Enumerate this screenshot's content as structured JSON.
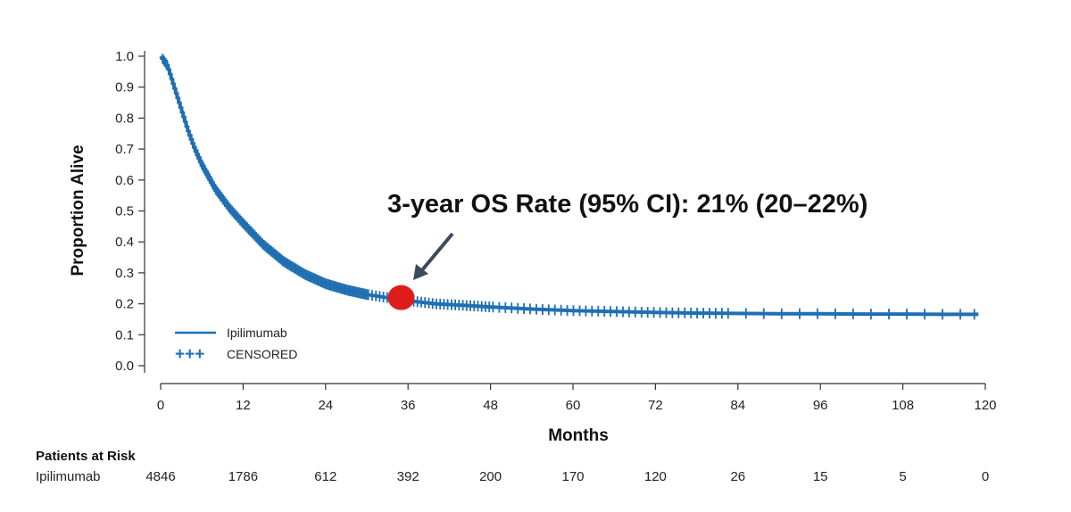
{
  "chart_data": {
    "type": "line",
    "xlabel": "Months",
    "ylabel": "Proportion Alive",
    "xlim": [
      0,
      120
    ],
    "ylim": [
      0,
      1.0
    ],
    "x_ticks": [
      0,
      12,
      24,
      36,
      48,
      60,
      72,
      84,
      96,
      108,
      120
    ],
    "y_ticks": [
      0.0,
      0.1,
      0.2,
      0.3,
      0.4,
      0.5,
      0.6,
      0.7,
      0.8,
      0.9,
      1.0
    ],
    "y_tick_labels": [
      "0.0",
      "0.1",
      "0.2",
      "0.3",
      "0.4",
      "0.5",
      "0.6",
      "0.7",
      "0.8",
      "0.9",
      "1.0"
    ],
    "grid": false,
    "legend_placement": "bottom-left",
    "legend": [
      {
        "label": "Ipilimumab",
        "symbol": "line"
      },
      {
        "label": "CENSORED",
        "symbol": "+++"
      }
    ],
    "series": [
      {
        "name": "Ipilimumab",
        "color": "#1f6fb2",
        "x": [
          0,
          1,
          2,
          3,
          4,
          5,
          6,
          8,
          10,
          12,
          15,
          18,
          21,
          24,
          27,
          30,
          33,
          36,
          40,
          44,
          48,
          54,
          60,
          66,
          72,
          78,
          84,
          90,
          96,
          102,
          108,
          114,
          119
        ],
        "y": [
          1.0,
          0.97,
          0.9,
          0.83,
          0.76,
          0.7,
          0.65,
          0.57,
          0.51,
          0.46,
          0.39,
          0.335,
          0.295,
          0.265,
          0.245,
          0.23,
          0.22,
          0.21,
          0.2,
          0.195,
          0.19,
          0.183,
          0.178,
          0.175,
          0.172,
          0.17,
          0.169,
          0.168,
          0.168,
          0.167,
          0.167,
          0.166,
          0.166
        ]
      }
    ],
    "annotation": {
      "text": "3-year OS Rate (95% CI): 21% (20–22%)",
      "point": {
        "x": 35,
        "y": 0.22
      },
      "marker_color": "#e01b1b"
    },
    "patients_at_risk": {
      "title": "Patients at Risk",
      "row_label": "Ipilimumab",
      "x": [
        0,
        12,
        24,
        36,
        48,
        60,
        72,
        84,
        96,
        108,
        120
      ],
      "values": [
        "4846",
        "1786",
        "612",
        "392",
        "200",
        "170",
        "120",
        "26",
        "15",
        "5",
        "0"
      ]
    }
  }
}
